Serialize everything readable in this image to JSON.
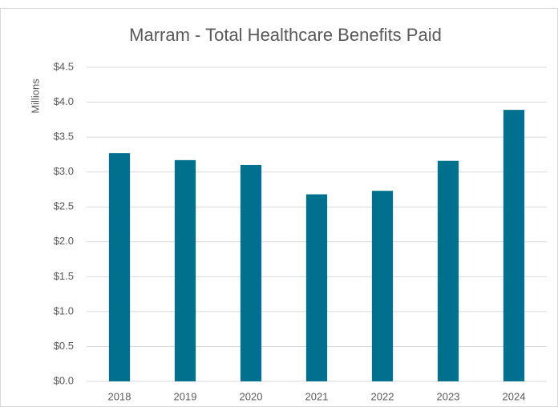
{
  "chart_data": {
    "type": "bar",
    "title": "Marram - Total Healthcare Benefits Paid",
    "y_label": "Millions",
    "categories": [
      "2018",
      "2019",
      "2020",
      "2021",
      "2022",
      "2023",
      "2024"
    ],
    "values": [
      3.27,
      3.17,
      3.1,
      2.68,
      2.73,
      3.16,
      3.89
    ],
    "color": "#00708f",
    "ylim": [
      0,
      4.5
    ],
    "yticks": [
      {
        "value": 0,
        "label": "$0.0"
      },
      {
        "value": 0.5,
        "label": "$0.5"
      },
      {
        "value": 1,
        "label": "$1.0"
      },
      {
        "value": 1.5,
        "label": "$1.5"
      },
      {
        "value": 2,
        "label": "$2.0"
      },
      {
        "value": 2.5,
        "label": "$2.5"
      },
      {
        "value": 3,
        "label": "$3.0"
      },
      {
        "value": 3.5,
        "label": "$3.5"
      },
      {
        "value": 4,
        "label": "$4.0"
      },
      {
        "value": 4.5,
        "label": "$4.5"
      }
    ],
    "grid": true
  }
}
